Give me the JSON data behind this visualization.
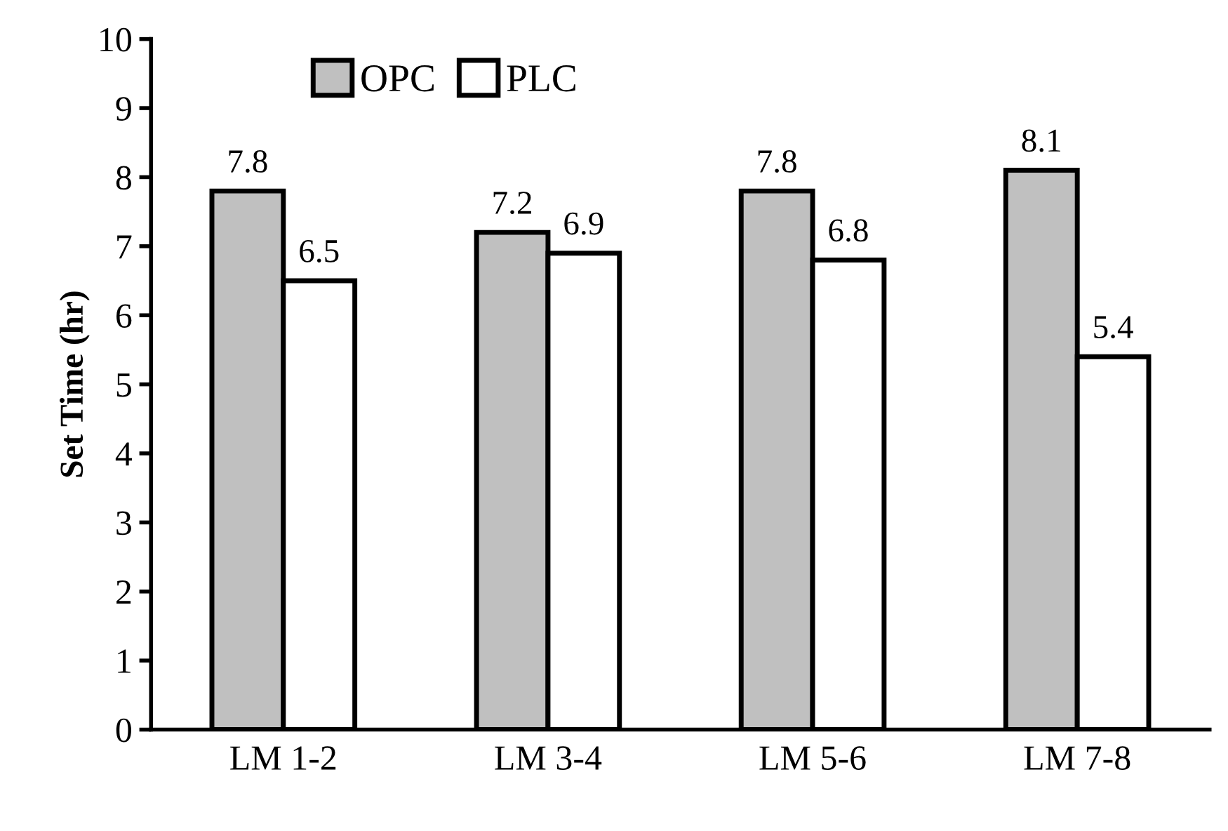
{
  "chart_data": {
    "type": "bar",
    "ylabel": "Set Time (hr)",
    "categories": [
      "LM 1-2",
      "LM 3-4",
      "LM 5-6",
      "LM 7-8"
    ],
    "series": [
      {
        "name": "OPC",
        "color": "#c0c0c0",
        "values": [
          7.8,
          7.2,
          7.8,
          8.1
        ]
      },
      {
        "name": "PLC",
        "color": "#ffffff",
        "values": [
          6.5,
          6.9,
          6.8,
          5.4
        ]
      }
    ],
    "ylim": [
      0,
      10
    ],
    "yticks": [
      0,
      1,
      2,
      3,
      4,
      5,
      6,
      7,
      8,
      9,
      10
    ],
    "data_labels": true,
    "legend": "top left",
    "grid": false
  }
}
